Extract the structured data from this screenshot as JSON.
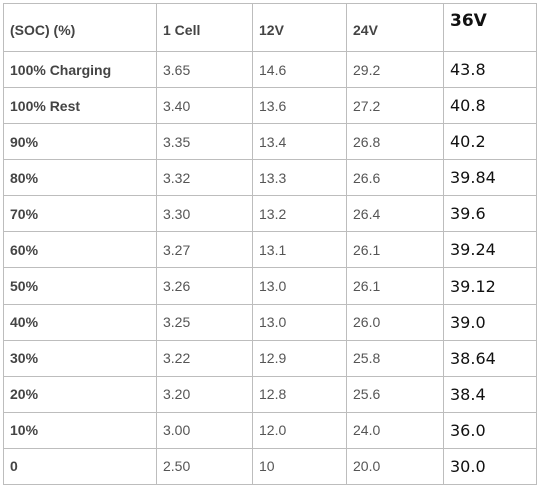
{
  "table": {
    "headers": [
      "(SOC) (%)",
      "1 Cell",
      "12V",
      "24V",
      "36V"
    ],
    "rows": [
      {
        "soc": "100% Charging",
        "cell": "3.65",
        "v12": "14.6",
        "v24": "29.2",
        "v36": "43.8"
      },
      {
        "soc": "100% Rest",
        "cell": "3.40",
        "v12": "13.6",
        "v24": "27.2",
        "v36": "40.8"
      },
      {
        "soc": "90%",
        "cell": "3.35",
        "v12": "13.4",
        "v24": "26.8",
        "v36": "40.2"
      },
      {
        "soc": "80%",
        "cell": "3.32",
        "v12": "13.3",
        "v24": "26.6",
        "v36": "39.84"
      },
      {
        "soc": "70%",
        "cell": "3.30",
        "v12": "13.2",
        "v24": "26.4",
        "v36": "39.6"
      },
      {
        "soc": "60%",
        "cell": "3.27",
        "v12": "13.1",
        "v24": "26.1",
        "v36": "39.24"
      },
      {
        "soc": "50%",
        "cell": "3.26",
        "v12": "13.0",
        "v24": "26.1",
        "v36": "39.12"
      },
      {
        "soc": "40%",
        "cell": "3.25",
        "v12": "13.0",
        "v24": "26.0",
        "v36": "39.0"
      },
      {
        "soc": "30%",
        "cell": "3.22",
        "v12": "12.9",
        "v24": "25.8",
        "v36": "38.64"
      },
      {
        "soc": "20%",
        "cell": "3.20",
        "v12": "12.8",
        "v24": "25.6",
        "v36": "38.4"
      },
      {
        "soc": "10%",
        "cell": "3.00",
        "v12": "12.0",
        "v24": "24.0",
        "v36": "36.0"
      },
      {
        "soc": "0",
        "cell": "2.50",
        "v12": "10",
        "v24": "20.0",
        "v36": "30.0"
      }
    ]
  }
}
